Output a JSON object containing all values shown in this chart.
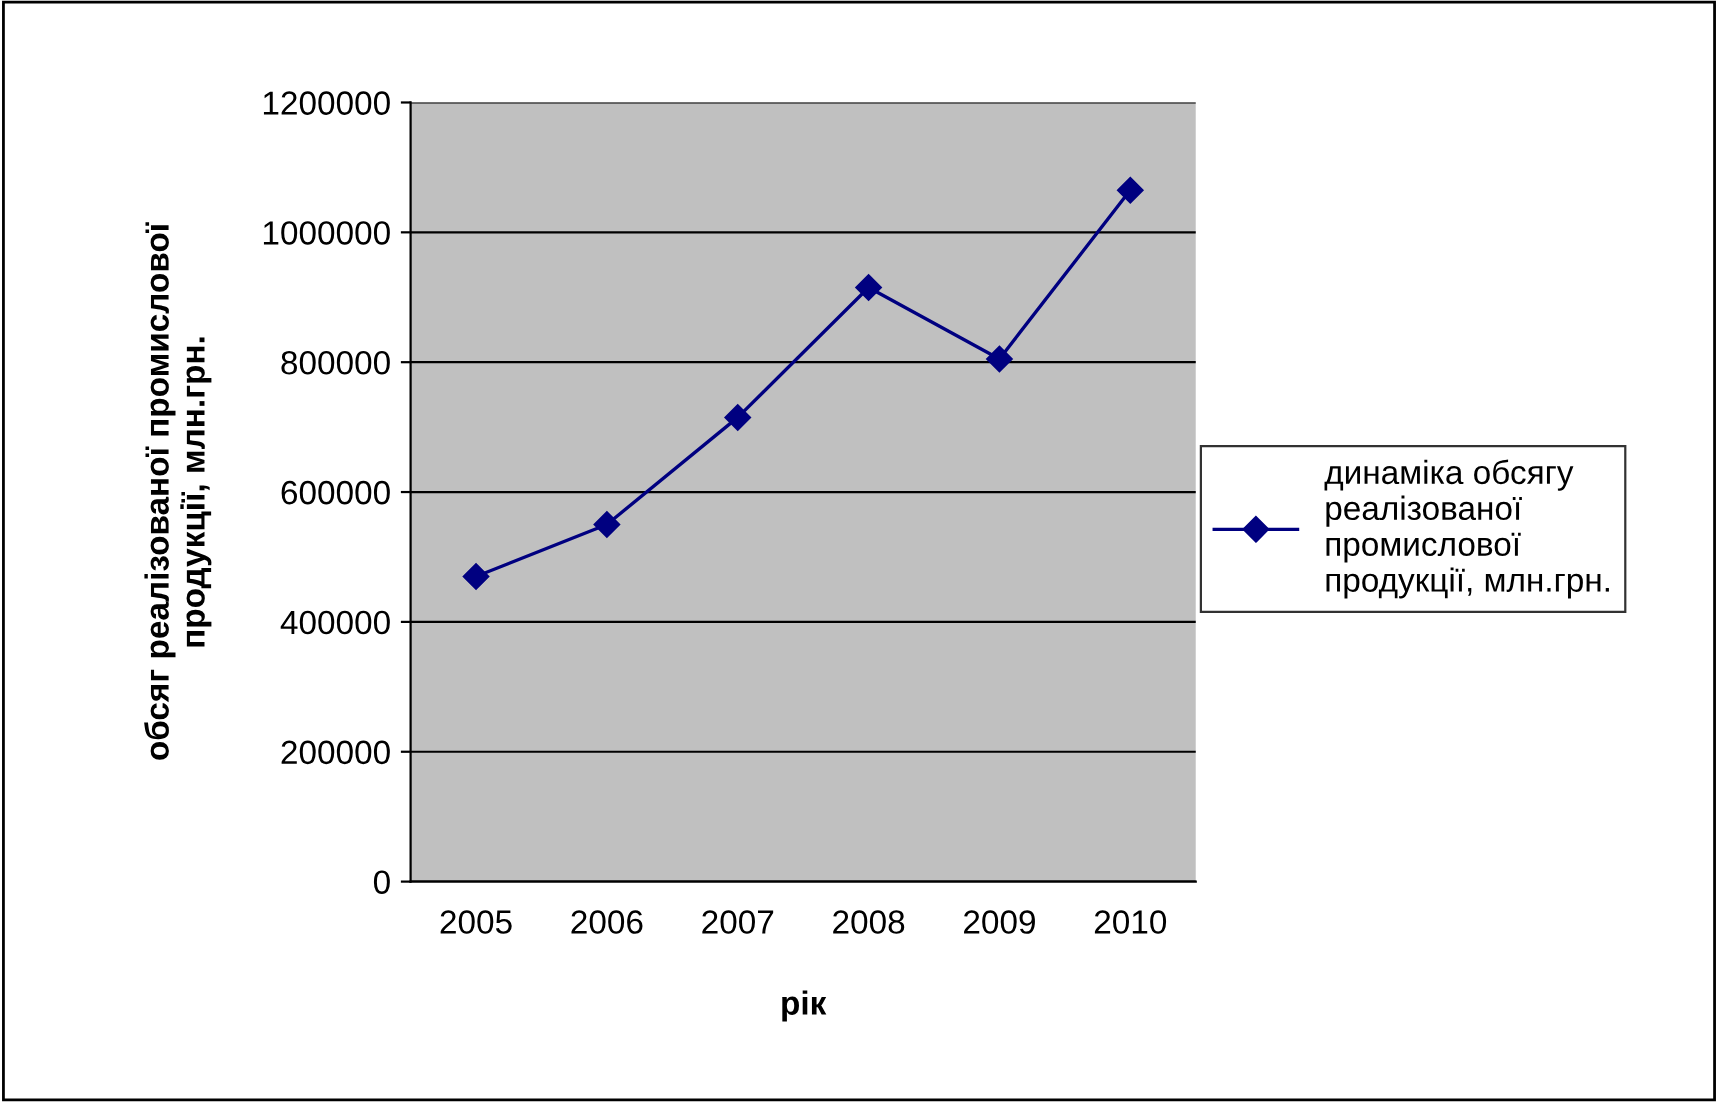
{
  "chart_data": {
    "type": "line",
    "xlabel": "рік",
    "ylabel": "обсяг реалізованої промислової\nпродукції, млн.грн.",
    "categories": [
      "2005",
      "2006",
      "2007",
      "2008",
      "2009",
      "2010"
    ],
    "series": [
      {
        "name": "динаміка обсягу\nреалізованої\nпромислової\nпродукції, млн.грн.",
        "color": "#000080",
        "values": [
          470000,
          550000,
          715000,
          915000,
          805000,
          1065000
        ]
      }
    ],
    "ylim": [
      0,
      1200000
    ],
    "yticks": [
      0,
      200000,
      400000,
      600000,
      800000,
      1000000,
      1200000
    ],
    "grid": "y",
    "legend": "right",
    "marker": "diamond",
    "line_style": "solid"
  }
}
